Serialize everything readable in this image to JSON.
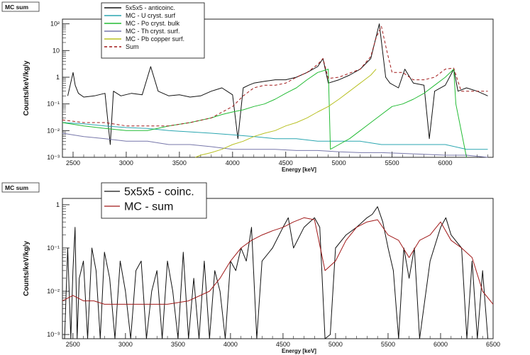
{
  "chart_data": [
    {
      "type": "line",
      "panel_label": "MC sum",
      "xlabel": "Energy [keV]",
      "ylabel": "Counts/keV/kg/y",
      "xlim": [
        2400,
        6450
      ],
      "ylim": [
        0.001,
        150
      ],
      "y_scale": "log",
      "legend_placement": "top-left",
      "x_ticks": [
        2500,
        3000,
        3500,
        4000,
        4500,
        5000,
        5500,
        6000
      ],
      "y_ticks": [
        {
          "value": 100,
          "label": "10²"
        },
        {
          "value": 10,
          "label": "10"
        },
        {
          "value": 1,
          "label": "1"
        },
        {
          "value": 0.1,
          "label": "10⁻¹"
        },
        {
          "value": 0.01,
          "label": "10⁻²"
        },
        {
          "value": 0.001,
          "label": "10⁻³"
        }
      ],
      "series": [
        {
          "name": "5x5x5 - anticoinc.",
          "color": "#111111",
          "dash": "",
          "x": [
            2450,
            2500,
            2520,
            2550,
            2600,
            2700,
            2800,
            2850,
            2880,
            2950,
            3050,
            3150,
            3230,
            3300,
            3400,
            3500,
            3600,
            3700,
            3800,
            3900,
            4000,
            4050,
            4100,
            4150,
            4200,
            4300,
            4400,
            4500,
            4600,
            4700,
            4800,
            4850,
            4900,
            5000,
            5100,
            5200,
            5300,
            5380,
            5410,
            5440,
            5480,
            5560,
            5620,
            5700,
            5800,
            5850,
            5900,
            6000,
            6080,
            6120,
            6200,
            6300,
            6400
          ],
          "y": [
            0.2,
            1.5,
            0.5,
            0.25,
            0.18,
            0.2,
            0.25,
            0.003,
            0.3,
            0.2,
            0.25,
            0.22,
            2.5,
            0.3,
            0.2,
            0.22,
            0.18,
            0.2,
            0.3,
            0.4,
            0.22,
            0.005,
            0.4,
            0.5,
            0.6,
            0.7,
            0.8,
            0.8,
            1.0,
            1.5,
            2.5,
            5.0,
            0.6,
            0.8,
            1.2,
            2.0,
            5.0,
            100,
            10,
            1.0,
            0.6,
            0.4,
            2.0,
            0.6,
            0.5,
            0.005,
            0.3,
            0.5,
            2.0,
            0.3,
            0.4,
            0.3,
            0.2
          ]
        },
        {
          "name": "MC - U cryst. surf",
          "color": "#2aa6b0",
          "dash": "",
          "x": [
            2400,
            2600,
            2800,
            3000,
            3200,
            3400,
            3600,
            3800,
            4000,
            4200,
            4400,
            4600,
            4800,
            5000,
            5200,
            5400,
            5600,
            5800,
            6000,
            6200,
            6400
          ],
          "y": [
            0.02,
            0.018,
            0.015,
            0.013,
            0.012,
            0.01,
            0.009,
            0.008,
            0.007,
            0.006,
            0.005,
            0.005,
            0.004,
            0.004,
            0.004,
            0.003,
            0.003,
            0.003,
            0.003,
            0.002,
            0.002
          ]
        },
        {
          "name": "MC - Po cryst. bulk",
          "color": "#22bb33",
          "dash": "",
          "x": [
            2400,
            2600,
            2800,
            3000,
            3200,
            3400,
            3600,
            3800,
            3900,
            4000,
            4100,
            4200,
            4300,
            4400,
            4500,
            4600,
            4700,
            4800,
            4900,
            4920,
            5000,
            5100,
            5200,
            5300,
            5400,
            5500,
            5600,
            5700,
            5800,
            5900,
            6000,
            6080,
            6100,
            6200
          ],
          "y": [
            0.02,
            0.015,
            0.012,
            0.01,
            0.01,
            0.015,
            0.02,
            0.03,
            0.04,
            0.05,
            0.06,
            0.08,
            0.1,
            0.15,
            0.25,
            0.4,
            0.8,
            1.5,
            2.0,
            0.002,
            0.003,
            0.005,
            0.01,
            0.02,
            0.04,
            0.08,
            0.1,
            0.15,
            0.25,
            0.5,
            1.0,
            2.0,
            0.1,
            0.001
          ]
        },
        {
          "name": "MC - Th cryst. surf.",
          "color": "#7777aa",
          "dash": "",
          "x": [
            2400,
            2600,
            2800,
            3000,
            3200,
            3400,
            3600,
            3800,
            4000,
            4200,
            4400,
            4600,
            4800,
            5000,
            5200,
            5400,
            5600,
            5800,
            6000,
            6200,
            6400
          ],
          "y": [
            0.008,
            0.006,
            0.005,
            0.004,
            0.004,
            0.003,
            0.003,
            0.0025,
            0.002,
            0.002,
            0.002,
            0.0018,
            0.0018,
            0.0016,
            0.0015,
            0.0015,
            0.0014,
            0.0013,
            0.0012,
            0.0012,
            0.001
          ]
        },
        {
          "name": "MC - Pb copper surf.",
          "color": "#b8c022",
          "dash": "",
          "x": [
            3650,
            3700,
            3800,
            3900,
            4000,
            4100,
            4200,
            4300,
            4400,
            4500,
            4600,
            4700,
            4800,
            4900,
            5000,
            5100,
            5200,
            5300,
            5350
          ],
          "y": [
            0.001,
            0.0012,
            0.0015,
            0.002,
            0.003,
            0.004,
            0.006,
            0.008,
            0.01,
            0.015,
            0.02,
            0.03,
            0.05,
            0.08,
            0.15,
            0.3,
            0.6,
            1.2,
            2.0
          ]
        },
        {
          "name": "Sum",
          "color": "#a01818",
          "dash": "4,3",
          "x": [
            2400,
            2600,
            2800,
            3000,
            3200,
            3400,
            3600,
            3800,
            4000,
            4100,
            4200,
            4300,
            4400,
            4500,
            4600,
            4700,
            4800,
            4850,
            4900,
            5000,
            5200,
            5300,
            5350,
            5400,
            5450,
            5500,
            5600,
            5700,
            5800,
            5900,
            6000,
            6080,
            6150,
            6300,
            6400
          ],
          "y": [
            0.025,
            0.02,
            0.02,
            0.015,
            0.015,
            0.015,
            0.02,
            0.03,
            0.08,
            0.2,
            0.4,
            0.5,
            0.5,
            0.6,
            1.0,
            1.5,
            3.0,
            5.0,
            0.9,
            1.0,
            2.0,
            6.0,
            30,
            80,
            10,
            1.5,
            1.5,
            0.8,
            0.8,
            1.0,
            2.0,
            2.2,
            0.3,
            0.3,
            0.3
          ]
        }
      ]
    },
    {
      "type": "line",
      "panel_label": "MC sum",
      "xlabel": "Energy [keV]",
      "ylabel": "Counts/keV/kg/y",
      "xlim": [
        2400,
        6500
      ],
      "ylim": [
        0.0008,
        1.4
      ],
      "y_scale": "log",
      "legend_placement": "top-left",
      "x_ticks": [
        2500,
        3000,
        3500,
        4000,
        4500,
        5000,
        5500,
        6000,
        6500
      ],
      "y_ticks": [
        {
          "value": 1,
          "label": "1"
        },
        {
          "value": 0.1,
          "label": "10⁻¹"
        },
        {
          "value": 0.01,
          "label": "10⁻²"
        },
        {
          "value": 0.001,
          "label": "10⁻³"
        }
      ],
      "series": [
        {
          "name": "5x5x5 - coinc.",
          "color": "#111111",
          "dash": "",
          "x": [
            2420,
            2450,
            2480,
            2500,
            2520,
            2540,
            2560,
            2600,
            2640,
            2680,
            2720,
            2760,
            2800,
            2850,
            2900,
            2950,
            3000,
            3050,
            3100,
            3150,
            3200,
            3250,
            3300,
            3350,
            3400,
            3450,
            3500,
            3550,
            3600,
            3650,
            3700,
            3750,
            3800,
            3850,
            3900,
            3950,
            4000,
            4050,
            4100,
            4150,
            4200,
            4250,
            4300,
            4400,
            4500,
            4550,
            4600,
            4700,
            4800,
            4850,
            4900,
            4950,
            5000,
            5100,
            5200,
            5300,
            5350,
            5400,
            5450,
            5500,
            5550,
            5600,
            5650,
            5700,
            5750,
            5800,
            5900,
            6000,
            6050,
            6100,
            6200,
            6250,
            6300,
            6350,
            6400,
            6450
          ],
          "y": [
            0.0008,
            0.1,
            0.0008,
            0.03,
            0.3,
            0.0008,
            0.02,
            0.05,
            0.0008,
            0.1,
            0.03,
            0.0008,
            0.08,
            0.02,
            0.0008,
            0.05,
            0.01,
            0.0008,
            0.03,
            0.05,
            0.0008,
            0.01,
            0.03,
            0.0008,
            0.05,
            0.01,
            0.0008,
            0.08,
            0.0008,
            0.02,
            0.0008,
            0.05,
            0.0008,
            0.03,
            0.01,
            0.0008,
            0.05,
            0.03,
            0.1,
            0.05,
            0.3,
            0.0008,
            0.05,
            0.1,
            0.3,
            0.5,
            0.1,
            0.3,
            0.5,
            0.3,
            0.0008,
            0.001,
            0.1,
            0.2,
            0.3,
            0.5,
            0.6,
            0.9,
            0.4,
            0.1,
            0.03,
            0.0008,
            0.1,
            0.02,
            0.1,
            0.0008,
            0.05,
            0.3,
            0.5,
            0.2,
            0.1,
            0.0008,
            0.05,
            0.0008,
            0.03,
            0.0008
          ]
        },
        {
          "name": "MC - sum",
          "color": "#a01818",
          "dash": "",
          "x": [
            2400,
            2500,
            2600,
            2700,
            2800,
            3000,
            3200,
            3400,
            3600,
            3800,
            3900,
            4000,
            4100,
            4200,
            4300,
            4400,
            4500,
            4600,
            4700,
            4800,
            4900,
            5000,
            5100,
            5200,
            5300,
            5400,
            5500,
            5600,
            5700,
            5800,
            5900,
            6000,
            6100,
            6200,
            6300,
            6400,
            6500
          ],
          "y": [
            0.006,
            0.008,
            0.006,
            0.006,
            0.005,
            0.005,
            0.005,
            0.005,
            0.006,
            0.01,
            0.02,
            0.05,
            0.1,
            0.15,
            0.2,
            0.25,
            0.3,
            0.4,
            0.5,
            0.45,
            0.03,
            0.05,
            0.15,
            0.3,
            0.4,
            0.45,
            0.2,
            0.15,
            0.06,
            0.15,
            0.2,
            0.4,
            0.15,
            0.1,
            0.06,
            0.01,
            0.005
          ]
        }
      ]
    }
  ]
}
